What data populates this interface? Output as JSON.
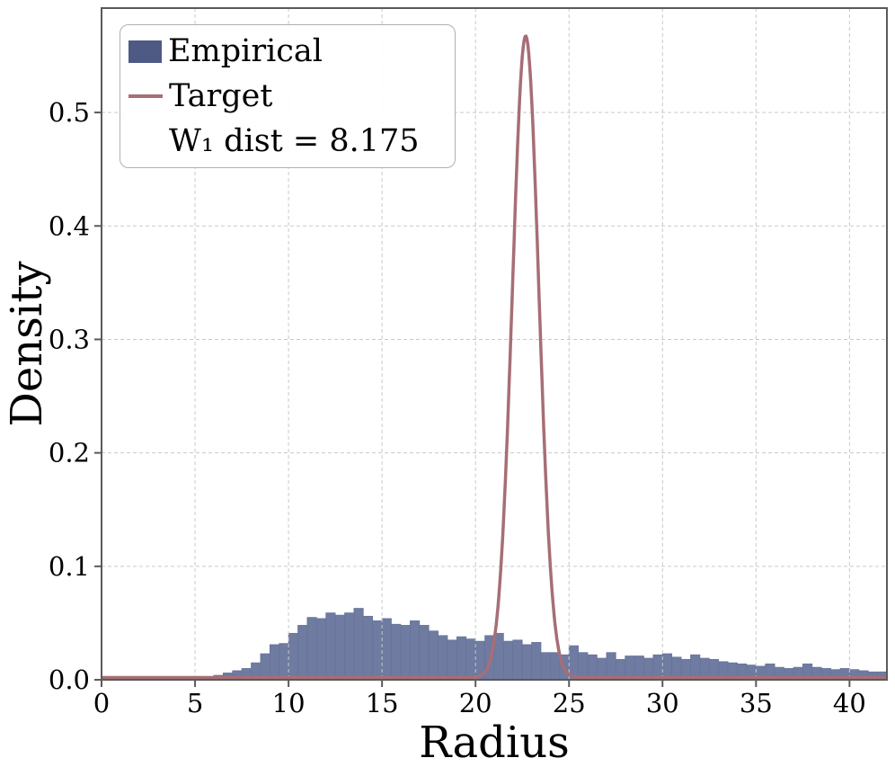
{
  "chart_data": {
    "type": "bar",
    "subtype": "histogram-with-density-curve",
    "title": "",
    "xlabel": "Radius",
    "ylabel": "Density",
    "xlim": [
      0,
      42
    ],
    "ylim": [
      0,
      0.592
    ],
    "grid": true,
    "grid_style": "dashed",
    "legend": {
      "position": "upper left",
      "items": [
        {
          "label": "Empirical",
          "type": "patch"
        },
        {
          "label": "Target",
          "type": "line"
        },
        {
          "label": "W₁ dist = 8.175",
          "type": "none"
        }
      ]
    },
    "x_ticks": [
      0,
      5,
      10,
      15,
      20,
      25,
      30,
      35,
      40
    ],
    "y_ticks": [
      {
        "value": 0.0,
        "label": "0.0"
      },
      {
        "value": 0.1,
        "label": "0.1"
      },
      {
        "value": 0.2,
        "label": "0.2"
      },
      {
        "value": 0.3,
        "label": "0.3"
      },
      {
        "value": 0.4,
        "label": "0.4"
      },
      {
        "value": 0.5,
        "label": "0.5"
      }
    ],
    "histogram": {
      "name": "Empirical",
      "bin_start": 6.0,
      "bin_width": 0.5,
      "densities": [
        0.004,
        0.006,
        0.008,
        0.01,
        0.015,
        0.023,
        0.031,
        0.032,
        0.041,
        0.048,
        0.055,
        0.054,
        0.059,
        0.057,
        0.059,
        0.063,
        0.056,
        0.052,
        0.054,
        0.049,
        0.048,
        0.052,
        0.048,
        0.043,
        0.039,
        0.035,
        0.038,
        0.036,
        0.034,
        0.039,
        0.041,
        0.034,
        0.035,
        0.031,
        0.033,
        0.024,
        0.024,
        0.022,
        0.03,
        0.024,
        0.022,
        0.019,
        0.024,
        0.018,
        0.021,
        0.021,
        0.019,
        0.022,
        0.023,
        0.02,
        0.018,
        0.022,
        0.019,
        0.018,
        0.016,
        0.015,
        0.014,
        0.013,
        0.012,
        0.014,
        0.011,
        0.01,
        0.011,
        0.014,
        0.011,
        0.01,
        0.009,
        0.01,
        0.009,
        0.008,
        0.007,
        0.007
      ]
    },
    "target_curve": {
      "name": "Target",
      "distribution": "gaussian",
      "mu": 22.68,
      "sigma": 0.705,
      "amplitude": 0.5655
    },
    "annotation": "W₁ dist = 8.175",
    "colors": {
      "bar_fill": "#6f7ba0",
      "bar_edge": "#66739b",
      "legend_patch": "#4e5a83",
      "curve": "#a76e75",
      "grid": "#c9c9c9",
      "spine": "#5a5a5a",
      "text": "#000000"
    }
  }
}
